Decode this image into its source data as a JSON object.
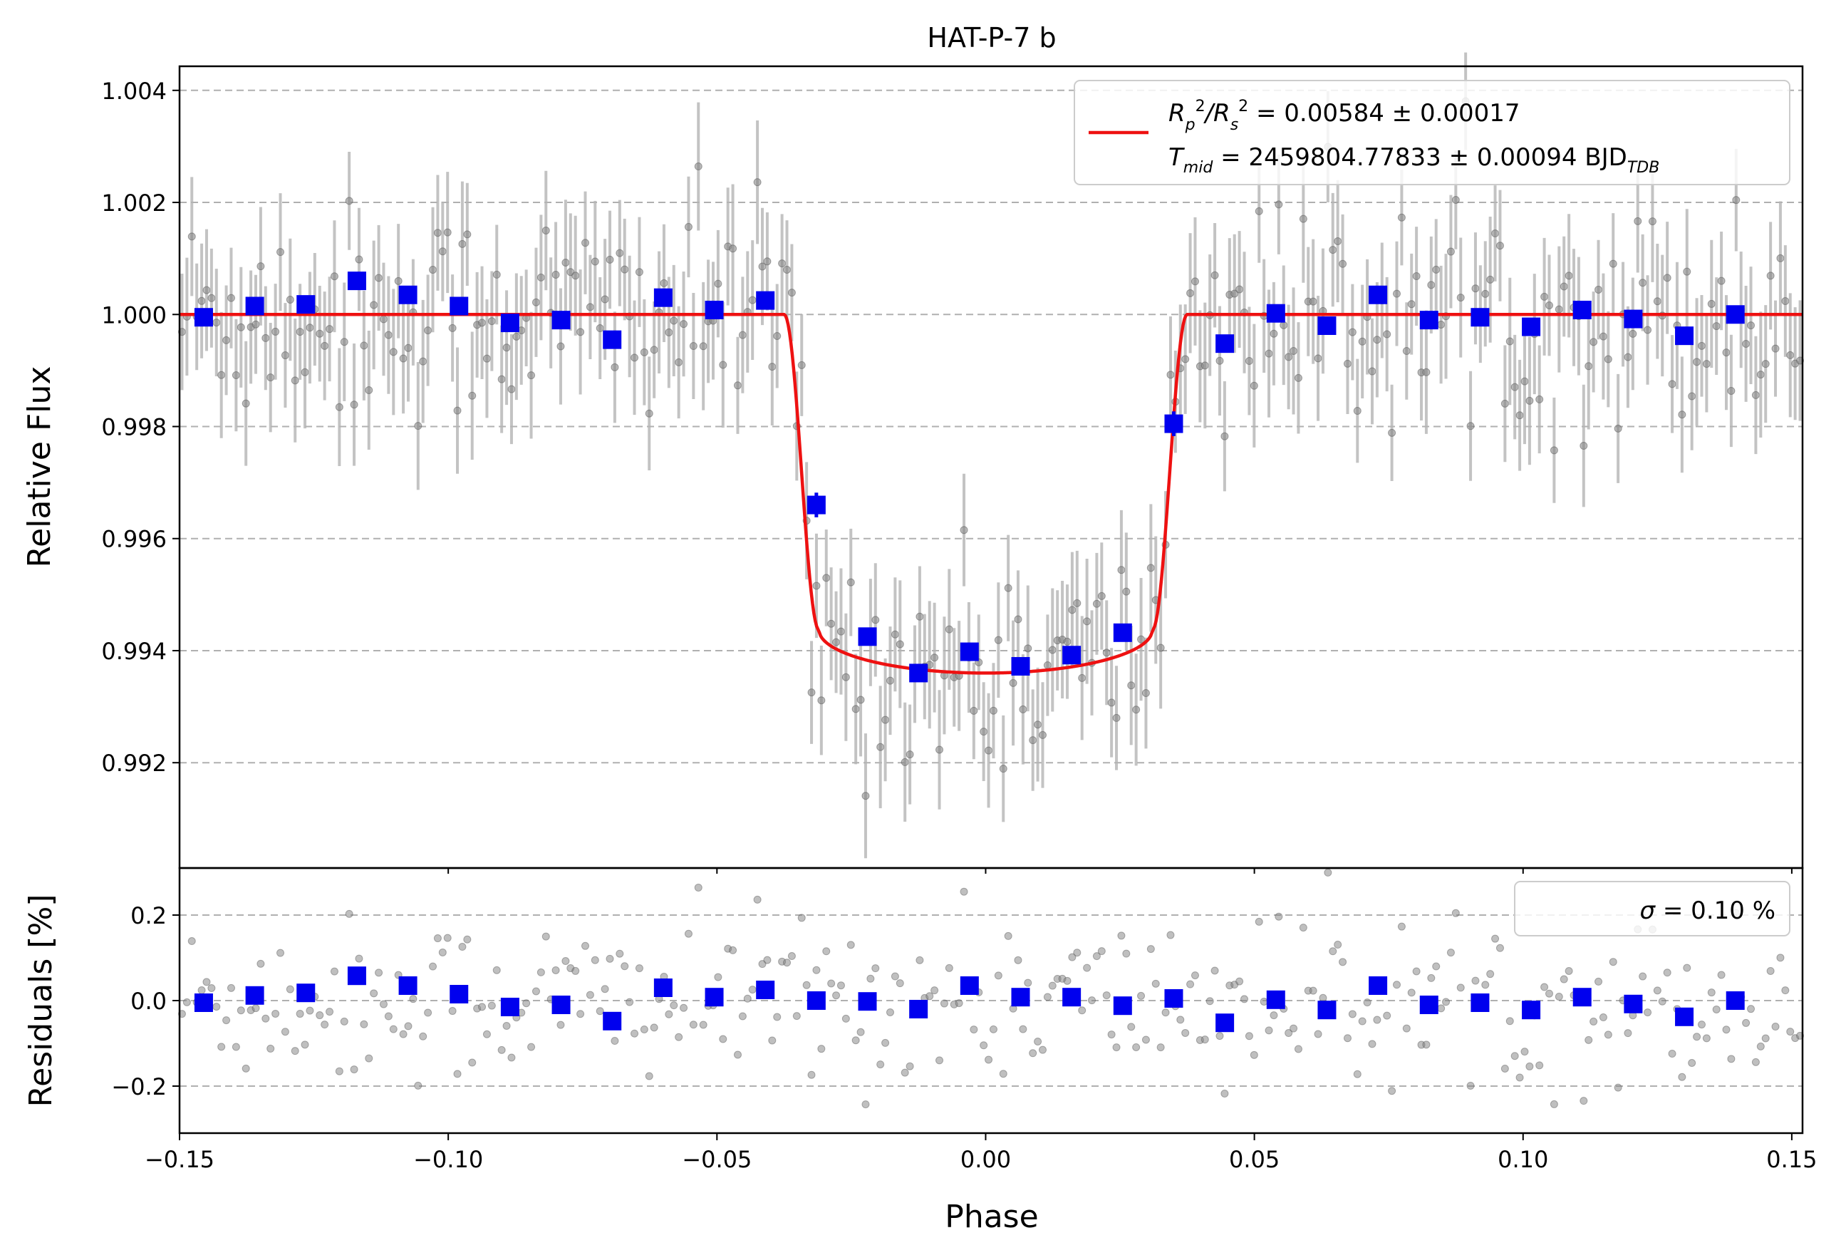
{
  "figure": {
    "title": "HAT-P-7 b"
  },
  "chart_data": [
    {
      "type": "scatter",
      "panel": "main",
      "ylabel": "Relative Flux",
      "xlim": [
        -0.15,
        0.152
      ],
      "ylim": [
        0.99012,
        1.00443
      ],
      "x_ticks": [
        -0.15,
        -0.1,
        -0.05,
        0.0,
        0.05,
        0.1,
        0.15
      ],
      "y_ticks": [
        0.992,
        0.994,
        0.996,
        0.998,
        1.0,
        1.002,
        1.004
      ],
      "y_tick_labels": [
        "0.992",
        "0.994",
        "0.996",
        "0.998",
        "1.000",
        "1.002",
        "1.004"
      ],
      "grid": "horizontal dashed",
      "legend": {
        "placement": "top-right",
        "line1": {
          "base": "R",
          "sub1": "p",
          "sup1": "2",
          "slash": "/R",
          "sub2": "s",
          "sup2": "2",
          "rest": " = 0.00584 ± 0.00017"
        },
        "line2": {
          "base": "T",
          "sub": "mid",
          "rest": " = 2459804.77833 ± 0.00094 BJD",
          "sub_tdb": "TDB"
        }
      },
      "model": {
        "color": "#ee1111",
        "baseline": 1.0,
        "depth": 0.0064,
        "t14_half": 0.0375,
        "t23_half": 0.031
      },
      "binned": {
        "color": "#0000ee",
        "x": [
          -0.1455,
          -0.136,
          -0.1265,
          -0.117,
          -0.1075,
          -0.098,
          -0.0885,
          -0.079,
          -0.0695,
          -0.06,
          -0.0505,
          -0.041,
          -0.0315,
          -0.022,
          -0.0125,
          -0.003,
          0.0065,
          0.016,
          0.0255,
          0.035,
          0.0445,
          0.054,
          0.0635,
          0.073,
          0.0825,
          0.092,
          0.1015,
          0.111,
          0.1205,
          0.13,
          0.1395
        ],
        "y": [
          0.99995,
          1.00015,
          1.00018,
          1.0006,
          1.00035,
          1.00015,
          0.99985,
          0.9999,
          0.99955,
          1.0003,
          1.00008,
          1.00025,
          0.9966,
          0.99425,
          0.9936,
          0.99398,
          0.99372,
          0.99392,
          0.99432,
          0.99805,
          0.99948,
          1.00002,
          0.9998,
          1.00035,
          0.9999,
          0.99995,
          0.99978,
          1.00008,
          0.99992,
          0.99962,
          1.0
        ],
        "yerr": [
          0.00012,
          0.00013,
          0.00012,
          0.00012,
          0.00013,
          0.00012,
          0.00012,
          0.00012,
          0.00013,
          0.00012,
          0.00013,
          0.00012,
          0.00022,
          0.00015,
          0.00015,
          0.00014,
          0.00015,
          0.00014,
          0.00016,
          0.00022,
          0.00013,
          0.00012,
          0.00012,
          0.00012,
          0.00013,
          0.00012,
          0.00012,
          0.00013,
          0.00012,
          0.00012,
          0.00012
        ]
      },
      "unbinned": {
        "n": 330,
        "typical_err": 0.001,
        "scatter_sigma": 0.001
      }
    },
    {
      "type": "scatter",
      "panel": "residuals",
      "xlabel": "Phase",
      "ylabel": "Residuals [%]",
      "xlim": [
        -0.15,
        0.152
      ],
      "ylim": [
        -0.31,
        0.31
      ],
      "x_ticks": [
        -0.15,
        -0.1,
        -0.05,
        0.0,
        0.05,
        0.1,
        0.15
      ],
      "x_tick_labels": [
        "−0.15",
        "−0.10",
        "−0.05",
        "0.00",
        "0.05",
        "0.10",
        "0.15"
      ],
      "y_ticks": [
        -0.2,
        0.0,
        0.2
      ],
      "y_tick_labels": [
        "−0.2",
        "0.0",
        "0.2"
      ],
      "grid": "horizontal dashed",
      "legend": {
        "placement": "top-right",
        "symbol": "σ",
        "text": " = 0.10 %"
      },
      "binned_residuals": [
        -0.005,
        0.012,
        0.018,
        0.058,
        0.035,
        0.015,
        -0.015,
        -0.01,
        -0.048,
        0.03,
        0.008,
        0.025,
        0.0,
        -0.002,
        -0.02,
        0.035,
        0.008,
        0.008,
        -0.012,
        0.005,
        -0.052,
        0.002,
        -0.022,
        0.035,
        -0.01,
        -0.005,
        -0.022,
        0.008,
        -0.008,
        -0.038,
        0.0
      ]
    }
  ]
}
